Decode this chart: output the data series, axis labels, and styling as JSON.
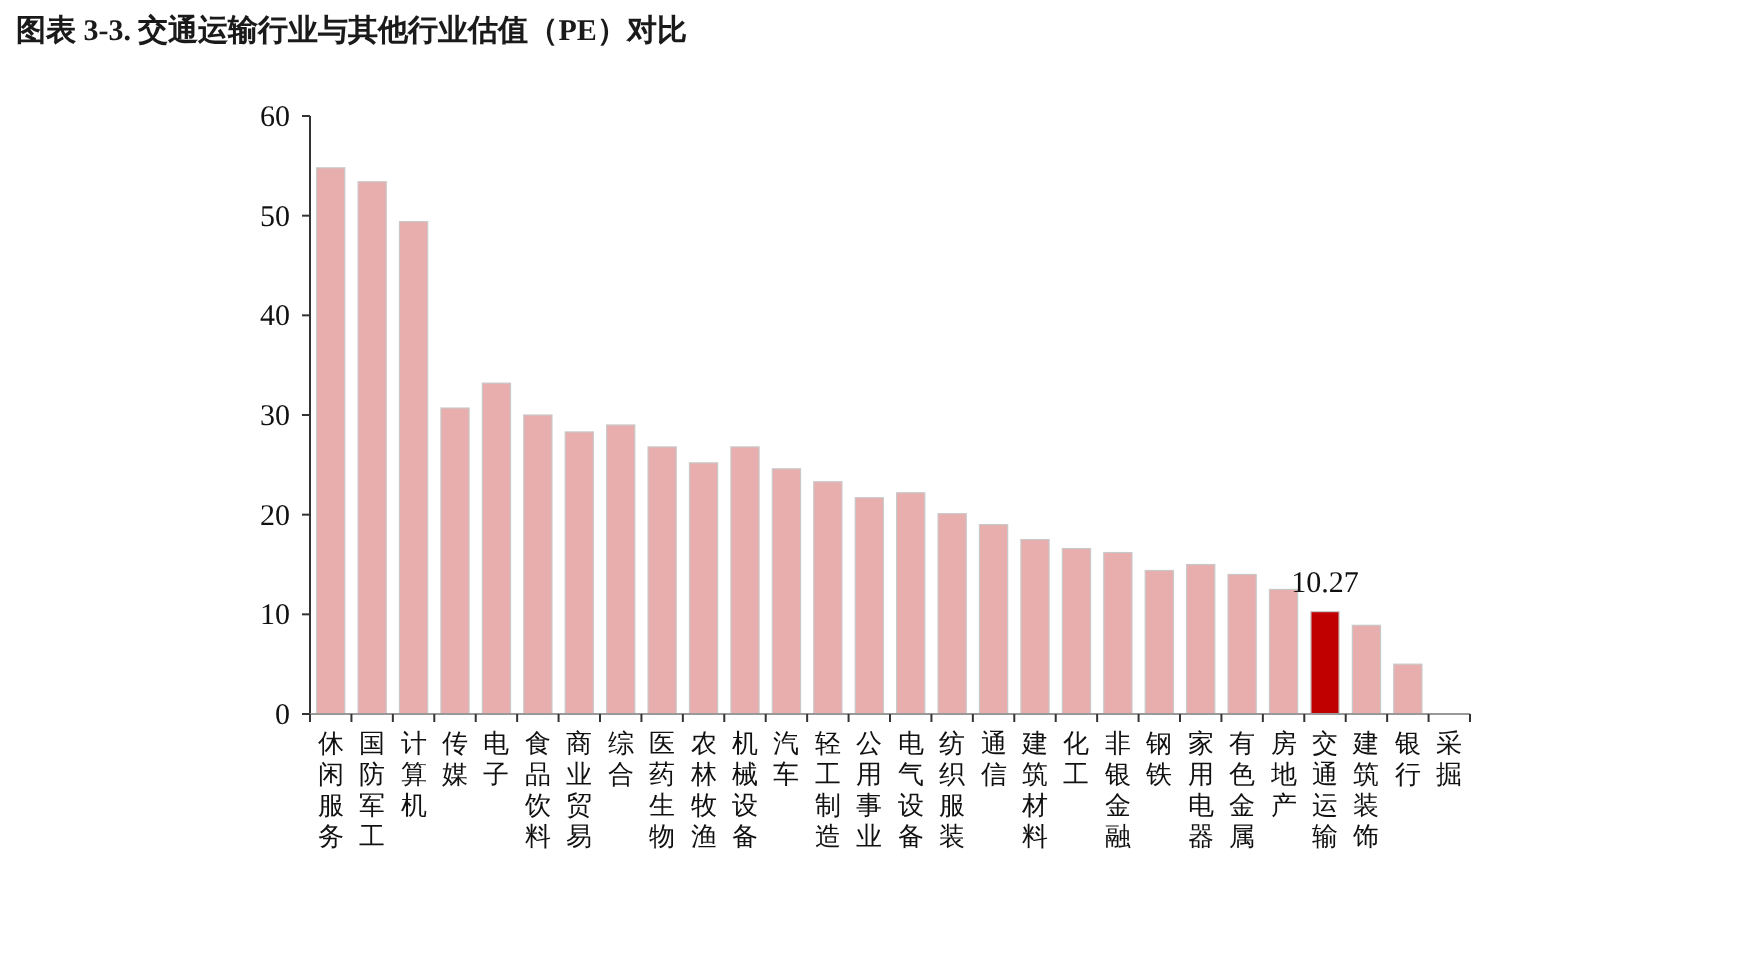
{
  "chart_data": {
    "type": "bar",
    "title": "图表 3-3. 交通运输行业与其他行业估值（PE）对比",
    "categories": [
      "休闲服务",
      "国防军工",
      "计算机",
      "传媒",
      "电子",
      "食品饮料",
      "商业贸易",
      "综合",
      "医药生物",
      "农林牧渔",
      "机械设备",
      "汽车",
      "轻工制造",
      "公用事业",
      "电气设备",
      "纺织服装",
      "通信",
      "建筑材料",
      "化工",
      "非银金融",
      "钢铁",
      "家用电器",
      "有色金属",
      "房地产",
      "交通运输",
      "建筑装饰",
      "银行",
      "采掘"
    ],
    "values": [
      54.8,
      53.4,
      49.4,
      30.7,
      33.2,
      30.0,
      28.3,
      29.0,
      26.8,
      25.2,
      26.8,
      24.6,
      23.3,
      21.7,
      22.2,
      20.1,
      19.0,
      17.5,
      16.6,
      16.2,
      14.4,
      15.0,
      14.0,
      12.5,
      10.27,
      8.9,
      5.0,
      null
    ],
    "colors": [
      "#e8adad",
      "#e8adad",
      "#e8adad",
      "#e8adad",
      "#e8adad",
      "#e8adad",
      "#e8adad",
      "#e8adad",
      "#e8adad",
      "#e8adad",
      "#e8adad",
      "#e8adad",
      "#e8adad",
      "#e8adad",
      "#e8adad",
      "#e8adad",
      "#e8adad",
      "#e8adad",
      "#e8adad",
      "#e8adad",
      "#e8adad",
      "#e8adad",
      "#e8adad",
      "#e8adad",
      "#c00000",
      "#e8adad",
      "#e8adad",
      null
    ],
    "value_labels": [
      null,
      null,
      null,
      null,
      null,
      null,
      null,
      null,
      null,
      null,
      null,
      null,
      null,
      null,
      null,
      null,
      null,
      null,
      null,
      null,
      null,
      null,
      null,
      null,
      "10.27",
      null,
      null,
      null
    ],
    "ylim": [
      0,
      60
    ],
    "yticks": [
      0,
      10,
      20,
      30,
      40,
      50,
      60
    ]
  }
}
